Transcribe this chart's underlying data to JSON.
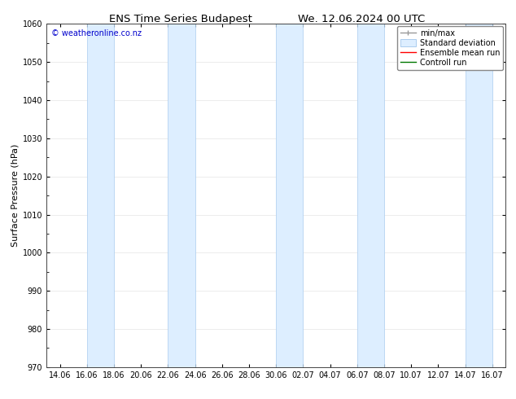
{
  "title": "ENS Time Series Budapest",
  "title2": "We. 12.06.2024 00 UTC",
  "ylabel": "Surface Pressure (hPa)",
  "ylim": [
    970,
    1060
  ],
  "yticks": [
    970,
    980,
    990,
    1000,
    1010,
    1020,
    1030,
    1040,
    1050,
    1060
  ],
  "xtick_labels": [
    "14.06",
    "16.06",
    "18.06",
    "20.06",
    "22.06",
    "24.06",
    "26.06",
    "28.06",
    "30.06",
    "02.07",
    "04.07",
    "06.07",
    "08.07",
    "10.07",
    "12.07",
    "14.07",
    "16.07"
  ],
  "copyright_text": "© weatheronline.co.nz",
  "copyright_color": "#0000cc",
  "band_color": "#ddeeff",
  "band_edge_color": "#aaccee",
  "background_color": "#ffffff",
  "legend_items": [
    {
      "label": "min/max",
      "color": "#999999",
      "lw": 1.0
    },
    {
      "label": "Standard deviation",
      "color": "#ddeeff",
      "lw": 6
    },
    {
      "label": "Ensemble mean run",
      "color": "#ff0000",
      "lw": 1.0
    },
    {
      "label": "Controll run",
      "color": "#007700",
      "lw": 1.0
    }
  ],
  "band_ranges": [
    [
      2,
      4
    ],
    [
      8,
      10
    ],
    [
      16,
      18
    ],
    [
      22,
      24
    ],
    [
      30,
      32
    ]
  ],
  "title_fontsize": 9.5,
  "axis_fontsize": 8,
  "tick_fontsize": 7,
  "legend_fontsize": 7
}
